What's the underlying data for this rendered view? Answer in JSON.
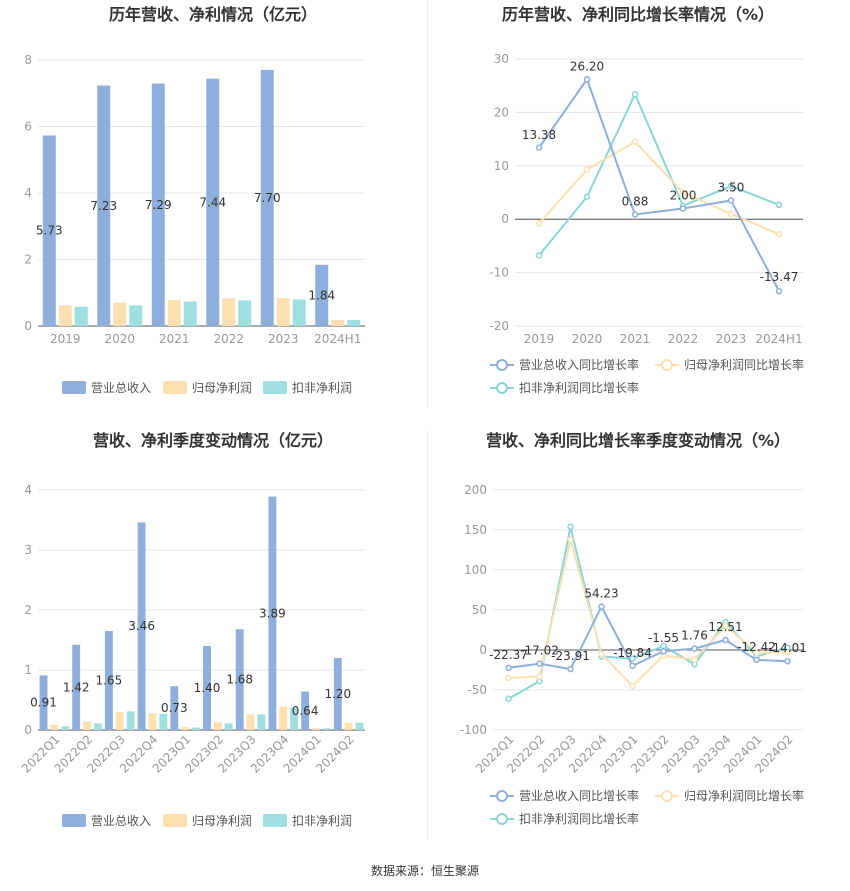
{
  "source_label": "数据来源：恒生聚源",
  "colors": {
    "revenue": "#8eaedb",
    "parent_profit": "#fde0b0",
    "deducted_profit": "#9fdfe0",
    "line_revenue": "#8eaedb",
    "line_parent": "#fde0b0",
    "line_deducted": "#88d6d8",
    "axis": "#999999",
    "grid": "#e6e6e6"
  },
  "chart_data": [
    {
      "id": "annual_bar",
      "type": "bar",
      "title": "历年营收、净利情况（亿元）",
      "categories": [
        "2019",
        "2020",
        "2021",
        "2022",
        "2023",
        "2024H1"
      ],
      "series": [
        {
          "name": "营业总收入",
          "values": [
            5.73,
            7.23,
            7.29,
            7.44,
            7.7,
            1.84
          ],
          "labels": [
            "5.73",
            "7.23",
            "7.29",
            "7.44",
            "7.70",
            "1.84"
          ]
        },
        {
          "name": "归母净利润",
          "values": [
            0.62,
            0.7,
            0.78,
            0.83,
            0.84,
            0.18
          ]
        },
        {
          "name": "扣非净利润",
          "values": [
            0.58,
            0.62,
            0.74,
            0.77,
            0.8,
            0.18
          ]
        }
      ],
      "yticks": [
        "0",
        "2",
        "4",
        "6",
        "8"
      ],
      "ylim": [
        0,
        8
      ],
      "legend": "bottom"
    },
    {
      "id": "annual_line",
      "type": "line",
      "title": "历年营收、净利同比增长率情况（%）",
      "categories": [
        "2019",
        "2020",
        "2021",
        "2022",
        "2023",
        "2024H1"
      ],
      "series": [
        {
          "name": "营业总收入同比增长率",
          "values": [
            13.38,
            26.2,
            0.88,
            2.0,
            3.5,
            -13.47
          ],
          "labels": [
            "13.38",
            "26.20",
            "0.88",
            "2.00",
            "3.50",
            "-13.47"
          ]
        },
        {
          "name": "归母净利润同比增长率",
          "values": [
            -0.8,
            9.3,
            14.5,
            5.0,
            1.0,
            -2.8
          ]
        },
        {
          "name": "扣非净利润同比增长率",
          "values": [
            -6.8,
            4.2,
            23.4,
            2.5,
            6.2,
            2.7
          ]
        }
      ],
      "yticks": [
        "-20",
        "-10",
        "0",
        "10",
        "20",
        "30"
      ],
      "ylim": [
        -20,
        30
      ],
      "legend": "bottom"
    },
    {
      "id": "quarterly_bar",
      "type": "bar",
      "title": "营收、净利季度变动情况（亿元）",
      "categories": [
        "2022Q1",
        "2022Q2",
        "2022Q3",
        "2022Q4",
        "2023Q1",
        "2023Q2",
        "2023Q3",
        "2023Q4",
        "2024Q1",
        "2024Q2"
      ],
      "series": [
        {
          "name": "营业总收入",
          "values": [
            0.91,
            1.42,
            1.65,
            3.46,
            0.73,
            1.4,
            1.68,
            3.89,
            0.64,
            1.2
          ],
          "labels": [
            "0.91",
            "1.42",
            "1.65",
            "3.46",
            "0.73",
            "1.40",
            "1.68",
            "3.89",
            "0.64",
            "1.20"
          ]
        },
        {
          "name": "归母净利润",
          "values": [
            0.09,
            0.14,
            0.3,
            0.28,
            0.05,
            0.13,
            0.26,
            0.39,
            0.03,
            0.12
          ]
        },
        {
          "name": "扣非净利润",
          "values": [
            0.06,
            0.11,
            0.31,
            0.27,
            0.04,
            0.11,
            0.26,
            0.37,
            0.03,
            0.12
          ]
        }
      ],
      "yticks": [
        "0",
        "1",
        "2",
        "3",
        "4"
      ],
      "ylim": [
        0,
        4
      ],
      "legend": "bottom"
    },
    {
      "id": "quarterly_line",
      "type": "line",
      "title": "营收、净利同比增长率季度变动情况（%）",
      "categories": [
        "2022Q1",
        "2022Q2",
        "2022Q3",
        "2022Q4",
        "2023Q1",
        "2023Q2",
        "2023Q3",
        "2023Q4",
        "2024Q1",
        "2024Q2"
      ],
      "series": [
        {
          "name": "营业总收入同比增长率",
          "values": [
            -22.37,
            -17.02,
            -23.91,
            54.23,
            -19.84,
            -1.55,
            1.76,
            12.51,
            -12.42,
            -14.01
          ],
          "labels": [
            "-22.37",
            "-17.02",
            "-23.91",
            "54.23",
            "-19.84",
            "-1.55",
            "1.76",
            "12.51",
            "-12.42",
            "-14.01"
          ]
        },
        {
          "name": "归母净利润同比增长率",
          "values": [
            -35,
            -33,
            138,
            -5,
            -45,
            -7,
            -12,
            30,
            -3,
            -3
          ]
        },
        {
          "name": "扣非净利润同比增长率",
          "values": [
            -61,
            -39,
            154,
            -8,
            -11,
            5,
            -18,
            35,
            -8,
            3
          ]
        }
      ],
      "yticks": [
        "-100",
        "-50",
        "0",
        "50",
        "100",
        "150",
        "200"
      ],
      "ylim": [
        -100,
        200
      ],
      "legend": "bottom"
    }
  ]
}
